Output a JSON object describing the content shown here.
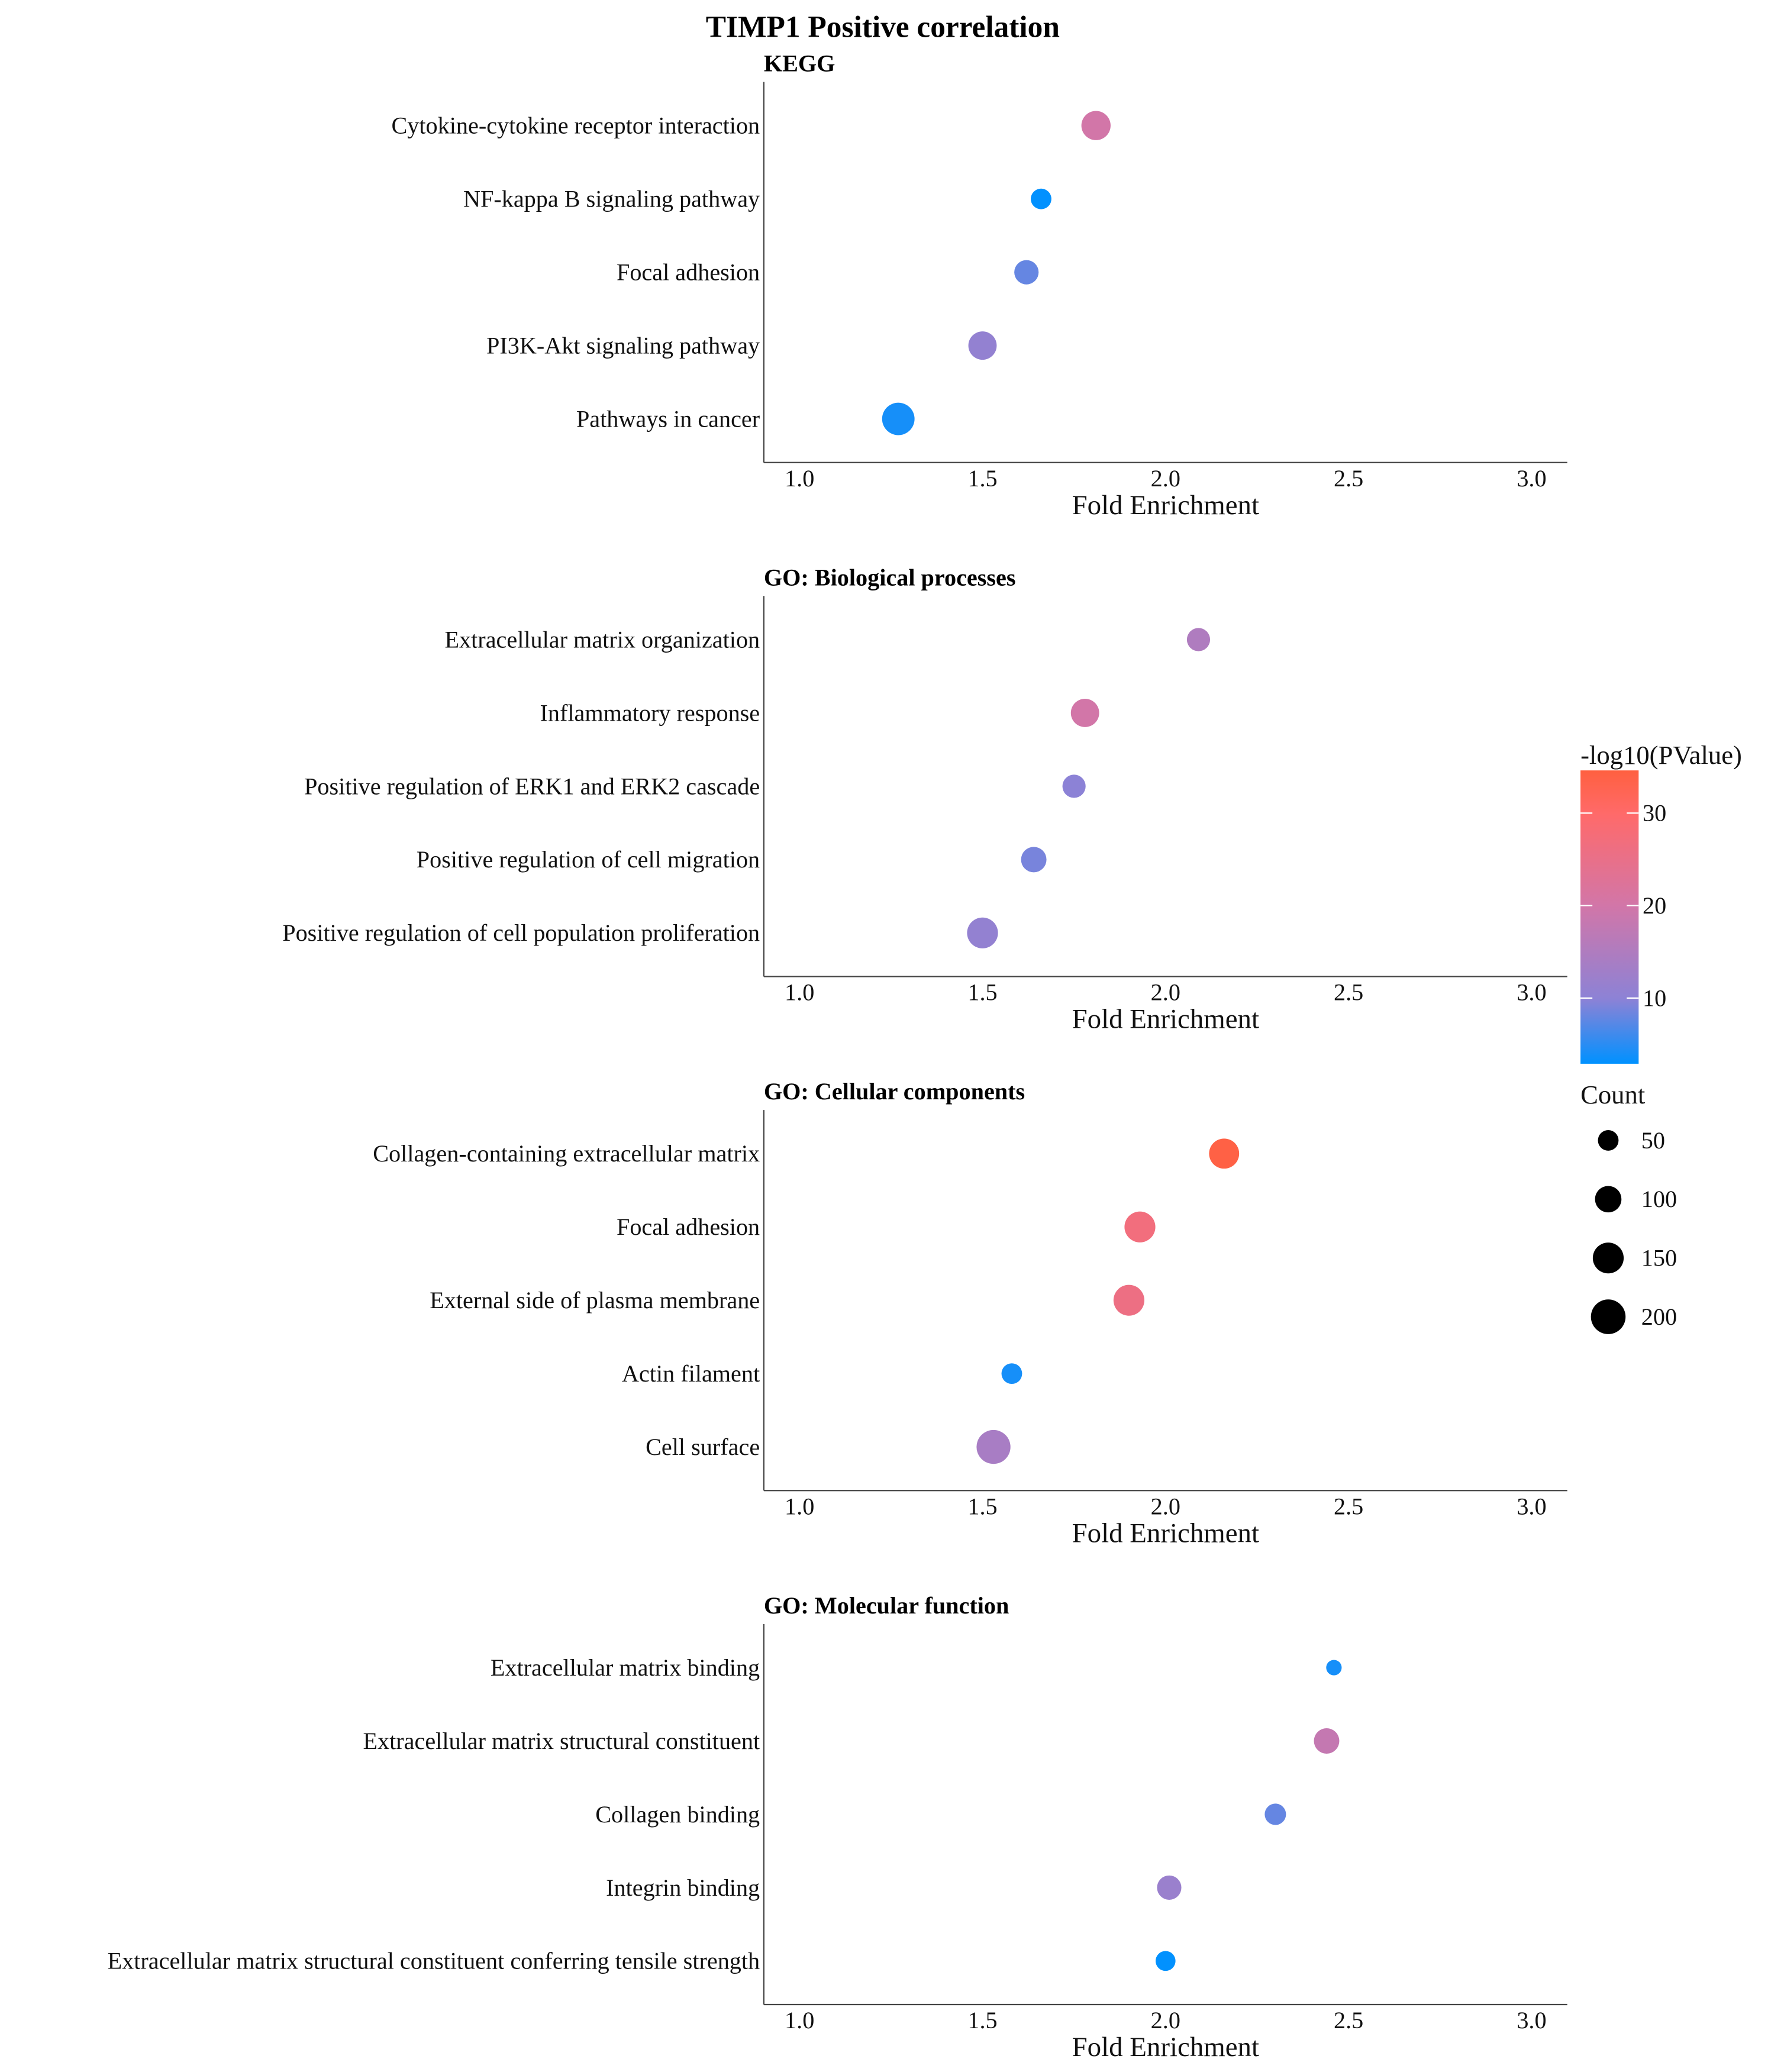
{
  "chart_data": {
    "type": "scatter",
    "title": "TIMP1 Positive correlation",
    "xlabel": "Fold Enrichment",
    "xlim": [
      0.9,
      3.1
    ],
    "xticks": [
      "1.0",
      "1.5",
      "2.0",
      "2.5",
      "3.0"
    ],
    "color_legend": {
      "title": "-log10(PValue)",
      "ticks": [
        "10",
        "20",
        "30"
      ],
      "range": [
        2.9,
        34.6
      ],
      "low_color": "#0091ff",
      "high_color": "#ff6040"
    },
    "size_legend": {
      "title": "Count",
      "values": [
        "50",
        "100",
        "150",
        "200"
      ]
    },
    "panels": [
      {
        "title": "KEGG",
        "terms": [
          {
            "term": "Cytokine-cytokine receptor interaction",
            "fold": 1.81,
            "count": 130,
            "neglog10p": 20
          },
          {
            "term": "NF-kappa B signaling pathway",
            "fold": 1.66,
            "count": 50,
            "neglog10p": 3
          },
          {
            "term": "Focal adhesion",
            "fold": 1.62,
            "count": 80,
            "neglog10p": 8
          },
          {
            "term": "PI3K-Akt signaling pathway",
            "fold": 1.5,
            "count": 120,
            "neglog10p": 11
          },
          {
            "term": "Pathways in cancer",
            "fold": 1.27,
            "count": 170,
            "neglog10p": 4
          }
        ]
      },
      {
        "title": "GO: Biological processes",
        "terms": [
          {
            "term": "Extracellular matrix organization",
            "fold": 2.09,
            "count": 70,
            "neglog10p": 15
          },
          {
            "term": "Inflammatory response",
            "fold": 1.78,
            "count": 120,
            "neglog10p": 20
          },
          {
            "term": "Positive regulation of ERK1 and ERK2 cascade",
            "fold": 1.75,
            "count": 70,
            "neglog10p": 10
          },
          {
            "term": "Positive regulation of cell migration",
            "fold": 1.64,
            "count": 90,
            "neglog10p": 9
          },
          {
            "term": "Positive regulation of cell population proliferation",
            "fold": 1.5,
            "count": 150,
            "neglog10p": 11
          }
        ]
      },
      {
        "title": "GO: Cellular components",
        "terms": [
          {
            "term": "Collagen-containing extracellular matrix",
            "fold": 2.16,
            "count": 140,
            "neglog10p": 34
          },
          {
            "term": "Focal adhesion",
            "fold": 1.93,
            "count": 150,
            "neglog10p": 27
          },
          {
            "term": "External side of plasma membrane",
            "fold": 1.9,
            "count": 150,
            "neglog10p": 26
          },
          {
            "term": "Actin filament",
            "fold": 1.58,
            "count": 50,
            "neglog10p": 4
          },
          {
            "term": "Cell surface",
            "fold": 1.53,
            "count": 190,
            "neglog10p": 14
          }
        ]
      },
      {
        "title": "GO: Molecular function",
        "terms": [
          {
            "term": "Extracellular matrix binding",
            "fold": 2.46,
            "count": 20,
            "neglog10p": 4
          },
          {
            "term": "Extracellular matrix structural constituent",
            "fold": 2.44,
            "count": 90,
            "neglog10p": 18
          },
          {
            "term": "Collagen binding",
            "fold": 2.3,
            "count": 55,
            "neglog10p": 8
          },
          {
            "term": "Integrin binding",
            "fold": 2.01,
            "count": 80,
            "neglog10p": 12
          },
          {
            "term": "Extracellular matrix structural constituent conferring tensile strength",
            "fold": 2.0,
            "count": 45,
            "neglog10p": 3
          }
        ]
      }
    ]
  }
}
